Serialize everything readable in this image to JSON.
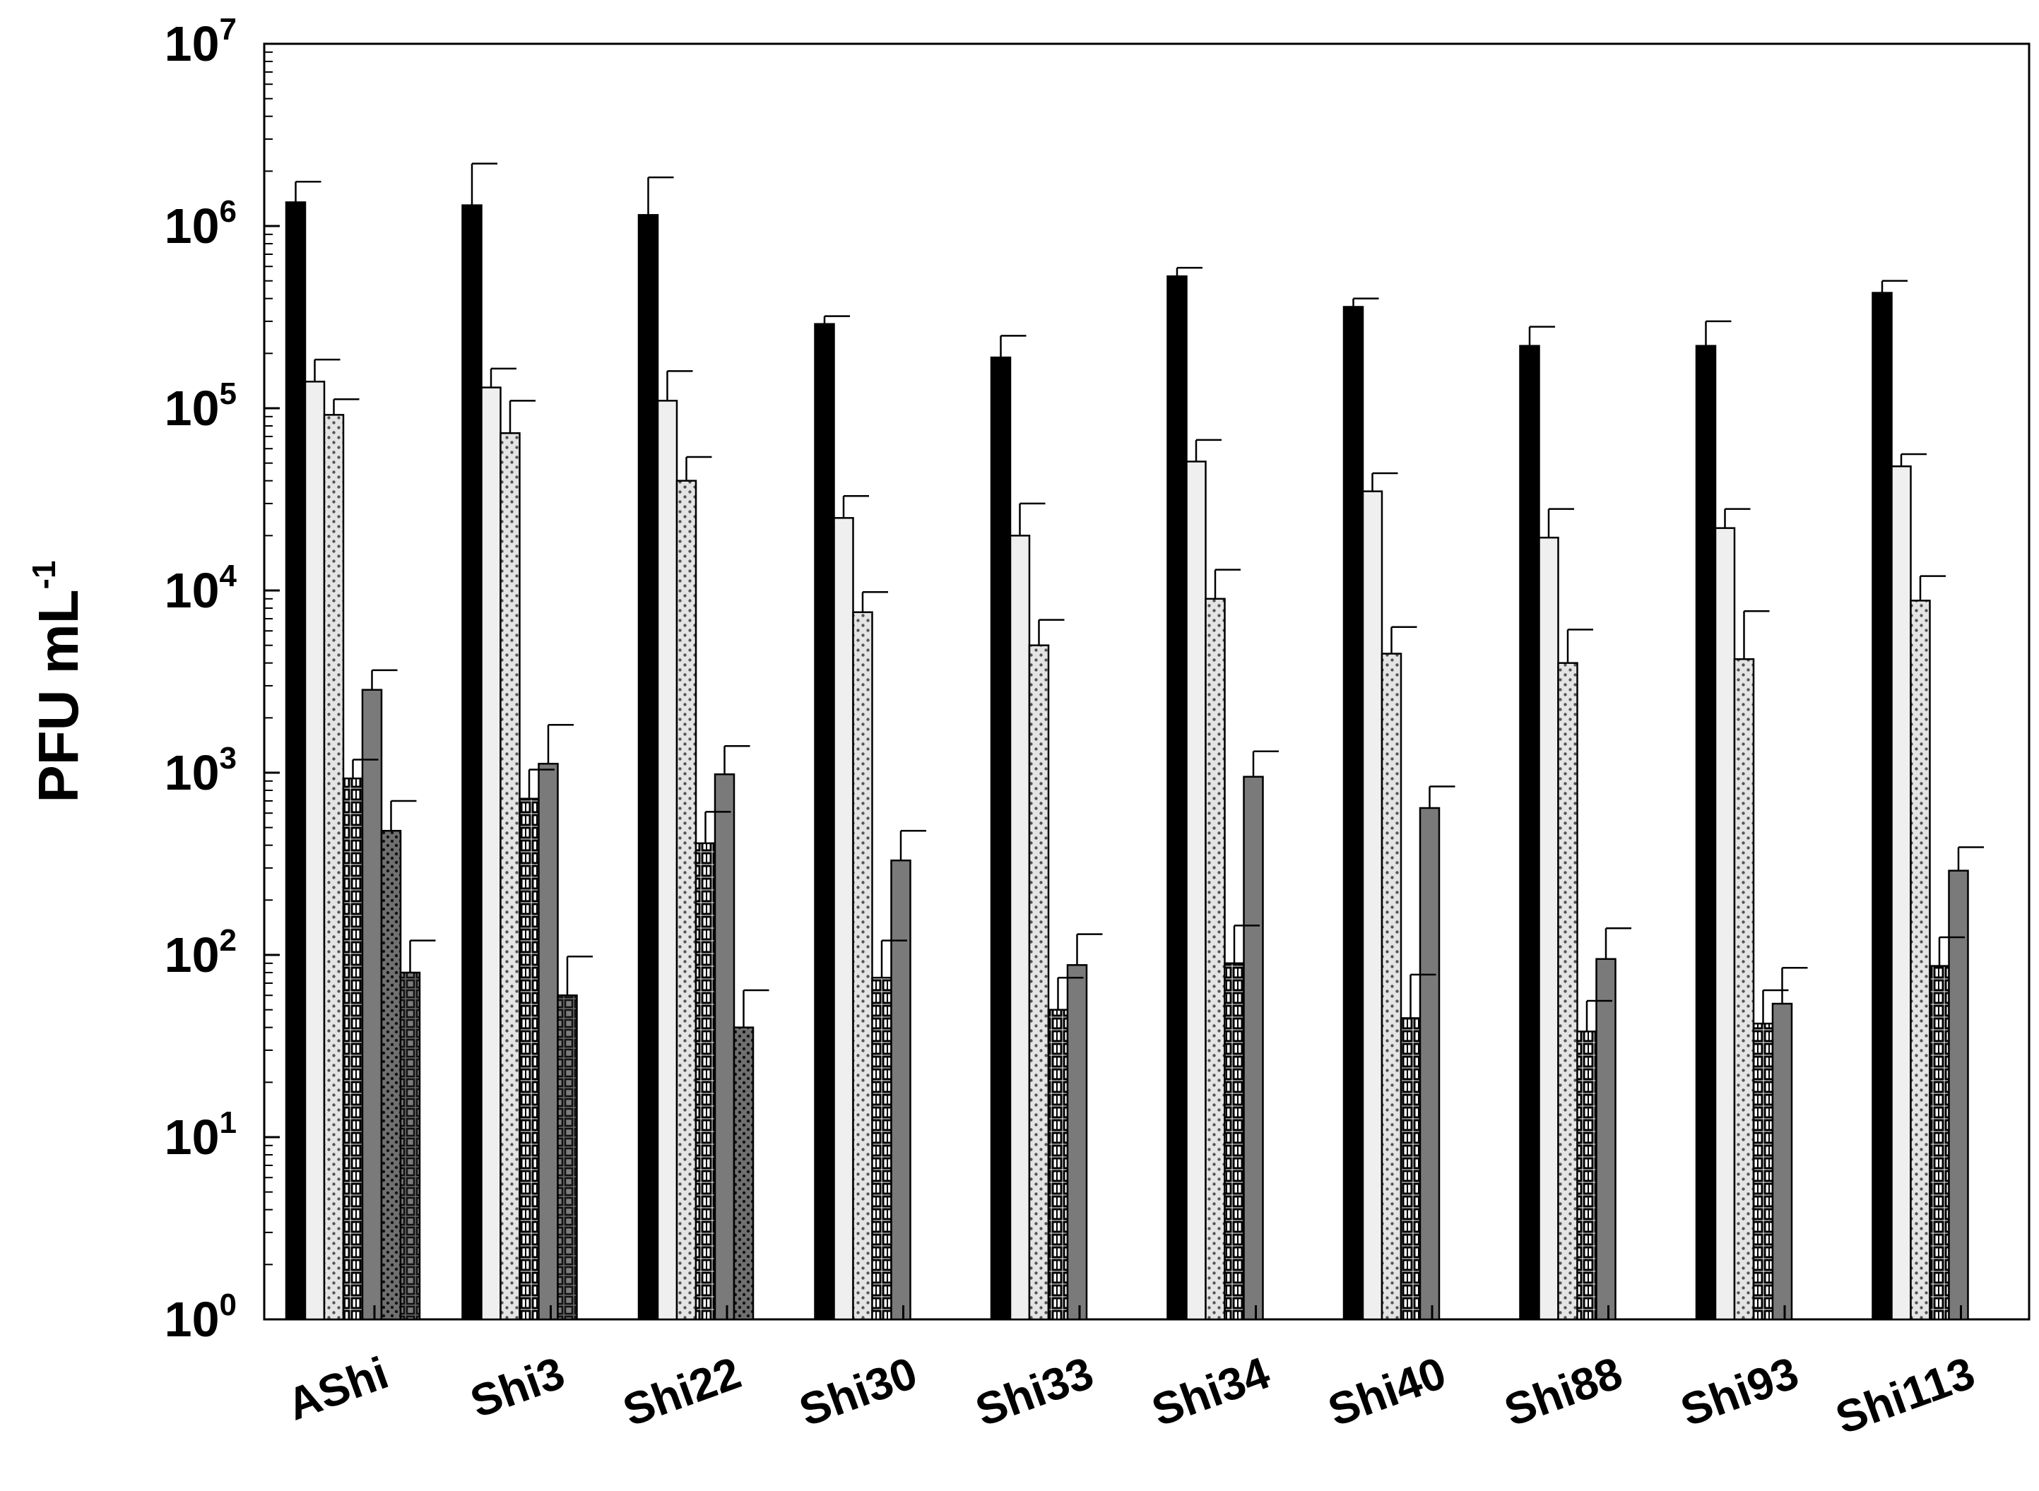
{
  "chart_data": {
    "type": "bar",
    "scale": "log",
    "ylabel": "PFU mL",
    "ylabel_superscript": "-1",
    "ylim": [
      1,
      10000000
    ],
    "ytick_exponents": [
      "0",
      "1",
      "2",
      "3",
      "4",
      "5",
      "6",
      "7"
    ],
    "ytick_base": "10",
    "grid": false,
    "categories": [
      "AShi",
      "Shi3",
      "Shi22",
      "Shi30",
      "Shi33",
      "Shi34",
      "Shi40",
      "Shi88",
      "Shi93",
      "Shi113"
    ],
    "series": [
      {
        "pattern": "solid-black",
        "values": [
          1350000,
          1300000,
          1150000,
          290000,
          190000,
          530000,
          360000,
          220000,
          220000,
          430000
        ],
        "errors": [
          1750000,
          2200000,
          1850000,
          320000,
          250000,
          590000,
          400000,
          280000,
          300000,
          500000
        ]
      },
      {
        "pattern": "light-grey",
        "values": [
          140000,
          130000,
          110000,
          25000,
          20000,
          51000,
          35000,
          19500,
          22000,
          48000
        ],
        "errors": [
          185000,
          165000,
          160000,
          33000,
          30000,
          67000,
          44000,
          28000,
          28000,
          56000
        ]
      },
      {
        "pattern": "dotted",
        "values": [
          92000,
          73000,
          40000,
          7600,
          5000,
          9000,
          4500,
          4000,
          4200,
          8800
        ],
        "errors": [
          112000,
          110000,
          54000,
          9800,
          6900,
          13000,
          6300,
          6100,
          7700,
          12000
        ]
      },
      {
        "pattern": "brick-grid",
        "values": [
          930,
          720,
          410,
          75,
          50,
          90,
          45,
          38,
          42,
          87
        ],
        "errors": [
          1180,
          1040,
          610,
          120,
          75,
          145,
          78,
          56,
          64,
          125
        ]
      },
      {
        "pattern": "grey-solid",
        "values": [
          2850,
          1120,
          980,
          330,
          88,
          950,
          640,
          95,
          54,
          290
        ],
        "errors": [
          3650,
          1830,
          1400,
          480,
          130,
          1310,
          840,
          140,
          85,
          390
        ]
      },
      {
        "pattern": "dark-dotted",
        "values": [
          480,
          null,
          40,
          null,
          null,
          null,
          null,
          null,
          null,
          null
        ],
        "errors": [
          700,
          null,
          64,
          null,
          null,
          null,
          null,
          null,
          null,
          null
        ]
      },
      {
        "pattern": "dark-grid",
        "values": [
          80,
          60,
          null,
          null,
          null,
          null,
          null,
          null,
          null,
          null
        ],
        "errors": [
          120,
          98,
          null,
          null,
          null,
          null,
          null,
          null,
          null,
          null
        ]
      }
    ]
  }
}
